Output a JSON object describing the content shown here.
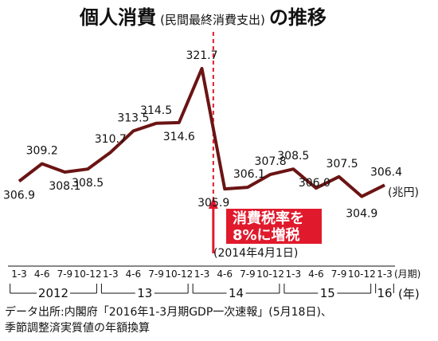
{
  "title": "個人消費",
  "subtitle": "(民間最終消費支出)",
  "title_suffix": "の推移",
  "unit_label": "(兆円)",
  "tax_line_date": "(2014年4月1日)",
  "tax_label_line1": "消費税率を",
  "tax_label_line2": "8%に増税",
  "x_unit_label": "(月期)",
  "year_unit_label": "(年)",
  "source_line1": "データ出所:内閣府「2016年1-3月期GDP一次速報」(5月18日)、",
  "source_line2": "季節調整済実質値の年額換算",
  "colors": {
    "line": "#6b1414",
    "event": "#e01a2c",
    "box": "#e01a2c"
  },
  "chart_data": {
    "type": "line",
    "title": "個人消費(民間最終消費支出)の推移",
    "ylabel": "(兆円)",
    "categories": [
      "1-3",
      "4-6",
      "7-9",
      "10-12",
      "1-3",
      "4-6",
      "7-9",
      "10-12",
      "1-3",
      "4-6",
      "7-9",
      "10-12",
      "1-3",
      "4-6",
      "7-9",
      "10-12",
      "1-3"
    ],
    "years": [
      {
        "label": "2012",
        "start": 0,
        "end": 3
      },
      {
        "label": "13",
        "start": 4,
        "end": 7
      },
      {
        "label": "14",
        "start": 8,
        "end": 11
      },
      {
        "label": "15",
        "start": 12,
        "end": 15
      },
      {
        "label": "16",
        "start": 16,
        "end": 16
      }
    ],
    "values": [
      306.9,
      309.2,
      308.1,
      308.5,
      310.7,
      313.5,
      314.5,
      314.6,
      321.7,
      305.9,
      306.1,
      307.8,
      308.5,
      306.0,
      307.5,
      304.9,
      306.4
    ],
    "data_labels": [
      "306.9",
      "309.2",
      "308.1",
      "308.5",
      "310.7",
      "313.5",
      "314.5",
      "314.6",
      "321.7",
      "305.9",
      "306.1",
      "307.8",
      "308.5",
      "306.0",
      "307.5",
      "304.9",
      "306.4"
    ],
    "ylim": [
      303.5,
      324
    ],
    "grid": false,
    "annotation": {
      "event_between": [
        8,
        9
      ],
      "text": "消費税率を8%に増税 (2014年4月1日)"
    }
  }
}
